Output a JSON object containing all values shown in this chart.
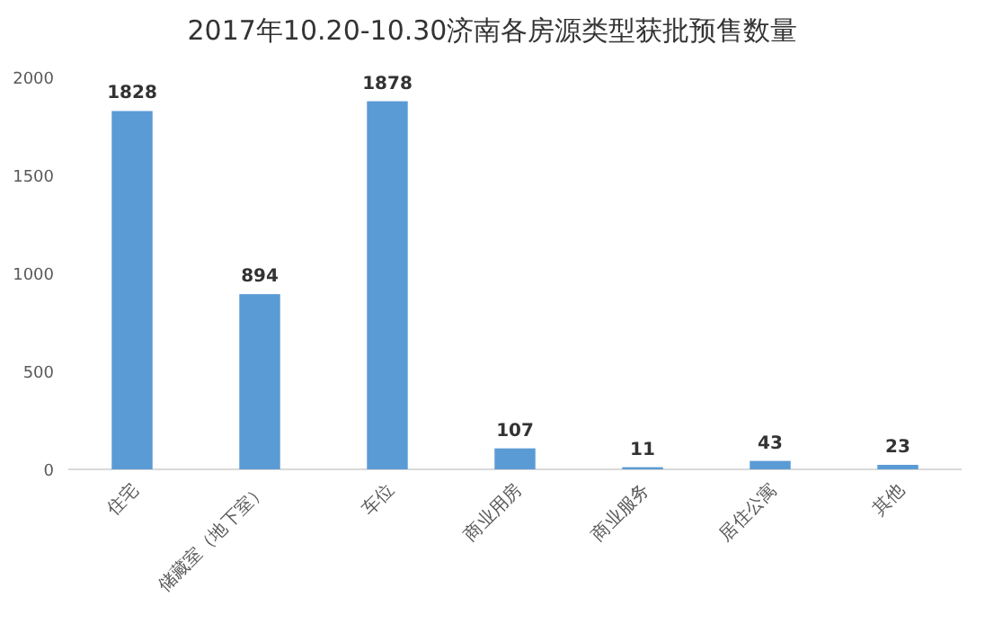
{
  "chart_data": {
    "type": "bar",
    "title": "2017年10.20-10.30济南各房源类型获批预售数量",
    "categories": [
      "住宅",
      "储藏室（地下室）",
      "车位",
      "商业用房",
      "商业服务",
      "居住公寓",
      "其他"
    ],
    "values": [
      1828,
      894,
      1878,
      107,
      11,
      43,
      23
    ],
    "color": "#5b9bd5",
    "ylim": [
      0,
      2000
    ],
    "yticks": [
      0,
      500,
      1000,
      1500,
      2000
    ],
    "data_labels": true,
    "grid": false
  }
}
